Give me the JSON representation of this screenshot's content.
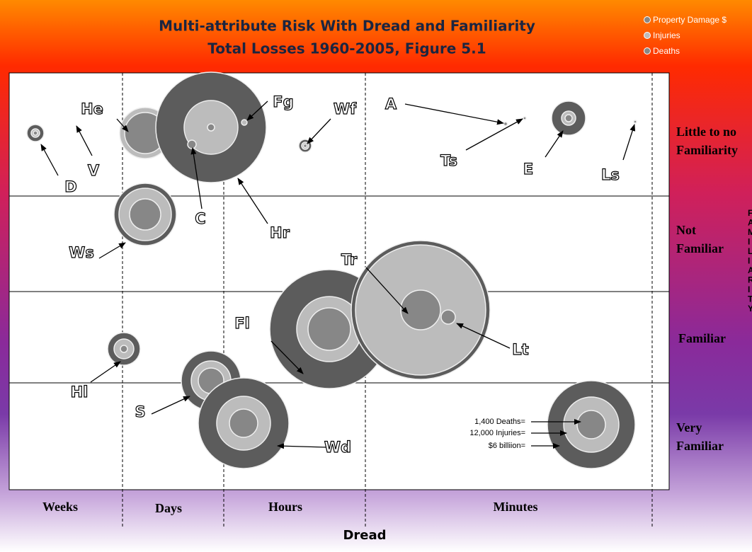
{
  "title": [
    "Multi-attribute Risk With Dread and Familiarity",
    "Total Losses 1960-2005, Figure 5.1"
  ],
  "legend": [
    "Property Damage $",
    "Injuries",
    "Deaths"
  ],
  "x_axis": {
    "label": "Dread",
    "categories": [
      "Weeks",
      "Days",
      "Hours",
      "Minutes"
    ]
  },
  "y_axis": {
    "categories": [
      [
        "Little to no",
        "Familiarity"
      ],
      [
        "Not",
        "Familiar"
      ],
      [
        "Familiar"
      ],
      [
        "Very",
        "Familiar"
      ]
    ]
  },
  "hazards": [
    "D",
    "V",
    "He",
    "Fg",
    "C",
    "Hr",
    "Wf",
    "A",
    "Ts",
    "E",
    "Ls",
    "Ws",
    "Tr",
    "Fl",
    "Lt",
    "Hl",
    "S",
    "Wd"
  ],
  "key": [
    "1,400 Deaths=",
    "12,000 Injuries=",
    "$6 billiion="
  ],
  "side_text": "FAMILIARITY"
}
